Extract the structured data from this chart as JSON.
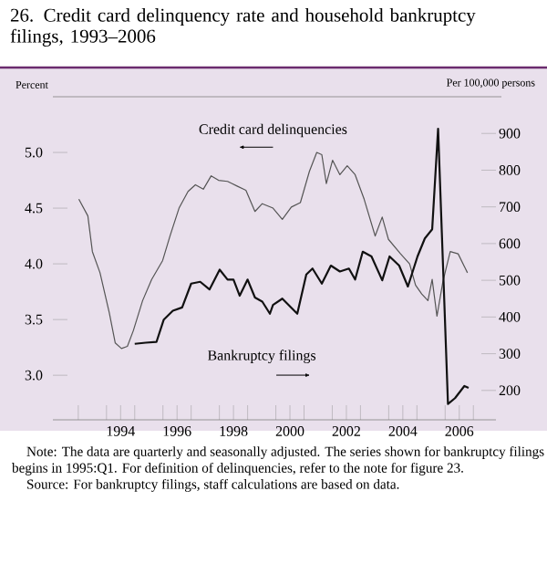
{
  "chart_data": {
    "type": "line",
    "title": "26.  Credit card delinquency rate and household bankruptcy filings, 1993–2006",
    "ylabel": "Percent",
    "y2label": "Per 100,000 persons",
    "annotations": [
      "Credit card delinquencies",
      "Bankruptcy filings",
      "Note: The data are quarterly and seasonally adjusted. The series shown for bankruptcy filings begins in 1995:Q1. For definition of delinquencies, refer to the note for figure 23.",
      "Source: For bankruptcy filings, staff calculations are based on data."
    ],
    "xlim": [
      1992.1,
      2007.8
    ],
    "xticks": [
      {
        "value": 1993,
        "label": null
      },
      {
        "value": 1994,
        "label": null
      },
      {
        "value": 1995,
        "label": null
      },
      {
        "value": 1996,
        "label": null
      },
      {
        "value": 1997,
        "label": null
      },
      {
        "value": 1998,
        "label": null
      },
      {
        "value": 1999,
        "label": null
      },
      {
        "value": 2000,
        "label": null
      },
      {
        "value": 2001,
        "label": null
      },
      {
        "value": 2002,
        "label": null
      },
      {
        "value": 2003,
        "label": null
      },
      {
        "value": 2004,
        "label": null
      },
      {
        "value": 2005,
        "label": null
      },
      {
        "value": 2006,
        "label": null
      },
      {
        "value": 2007,
        "label": null
      },
      {
        "value": 1994.5,
        "label": "1994"
      },
      {
        "value": 1996.5,
        "label": "1996"
      },
      {
        "value": 1998.5,
        "label": "1998"
      },
      {
        "value": 2000.5,
        "label": "2000"
      },
      {
        "value": 2002.5,
        "label": "2002"
      },
      {
        "value": 2004.5,
        "label": "2004"
      },
      {
        "value": 2006.5,
        "label": "2006"
      }
    ],
    "ylim": [
      2.6,
      5.5
    ],
    "yticks": [
      {
        "value": 3.0,
        "label": "3.0"
      },
      {
        "value": 3.5,
        "label": "3.5"
      },
      {
        "value": 4.0,
        "label": "4.0"
      },
      {
        "value": 4.5,
        "label": "4.5"
      },
      {
        "value": 5.0,
        "label": "5.0"
      }
    ],
    "y2lim": [
      120,
      1000
    ],
    "y2ticks": [
      200,
      300,
      400,
      500,
      600,
      700,
      800,
      900
    ],
    "grid": false,
    "marker": "none",
    "series": [
      {
        "color": "#555555",
        "line_style": "solid",
        "x": [
          1993.02,
          1993.34,
          1993.5,
          1993.77,
          1994.1,
          1994.31,
          1994.53,
          1994.74,
          1994.95,
          1995.28,
          1995.6,
          1995.99,
          1996.25,
          1996.57,
          1996.89,
          1997.15,
          1997.43,
          1997.71,
          1997.97,
          1998.29,
          1998.61,
          1998.94,
          1999.26,
          1999.52,
          1999.9,
          2000.23,
          2000.55,
          2000.87,
          2001.19,
          2001.45,
          2001.63,
          2001.79,
          2002.01,
          2002.27,
          2002.53,
          2002.81,
          2003.13,
          2003.52,
          2003.77,
          2003.99,
          2004.42,
          2004.74,
          2004.95,
          2005.17,
          2005.39,
          2005.54,
          2005.71,
          2005.92,
          2006.18,
          2006.46,
          2006.79
        ],
        "values": [
          4.58,
          4.43,
          4.11,
          3.92,
          3.56,
          3.29,
          3.24,
          3.26,
          3.4,
          3.67,
          3.86,
          4.03,
          4.25,
          4.5,
          4.65,
          4.71,
          4.67,
          4.79,
          4.75,
          4.74,
          4.7,
          4.66,
          4.47,
          4.54,
          4.5,
          4.4,
          4.51,
          4.55,
          4.83,
          5.0,
          4.98,
          4.72,
          4.93,
          4.8,
          4.88,
          4.8,
          4.58,
          4.25,
          4.42,
          4.22,
          4.09,
          4.0,
          3.81,
          3.73,
          3.67,
          3.86,
          3.53,
          3.84,
          4.11,
          4.09,
          3.92
        ]
      },
      {
        "color": "#111111",
        "line_style": "solid",
        "axis": "y2",
        "x": [
          1995.0,
          1995.39,
          1995.77,
          1996.03,
          1996.35,
          1996.68,
          1997.0,
          1997.32,
          1997.65,
          1998.01,
          1998.29,
          1998.5,
          1998.72,
          1999.0,
          1999.26,
          1999.52,
          1999.79,
          1999.9,
          2000.23,
          2000.76,
          2001.08,
          2001.3,
          2001.63,
          2001.95,
          2002.27,
          2002.59,
          2002.81,
          2003.08,
          2003.39,
          2003.77,
          2004.03,
          2004.37,
          2004.68,
          2005.02,
          2005.28,
          2005.54,
          2005.75,
          2005.92,
          2006.1,
          2006.35,
          2006.68,
          2006.83
        ],
        "values": [
          327,
          330,
          332,
          393,
          417,
          426,
          491,
          496,
          475,
          529,
          502,
          502,
          458,
          502,
          453,
          442,
          409,
          433,
          450,
          409,
          516,
          532,
          491,
          540,
          524,
          532,
          502,
          578,
          565,
          500,
          565,
          540,
          483,
          565,
          614,
          639,
          913,
          549,
          163,
          179,
          212,
          207
        ]
      }
    ]
  }
}
